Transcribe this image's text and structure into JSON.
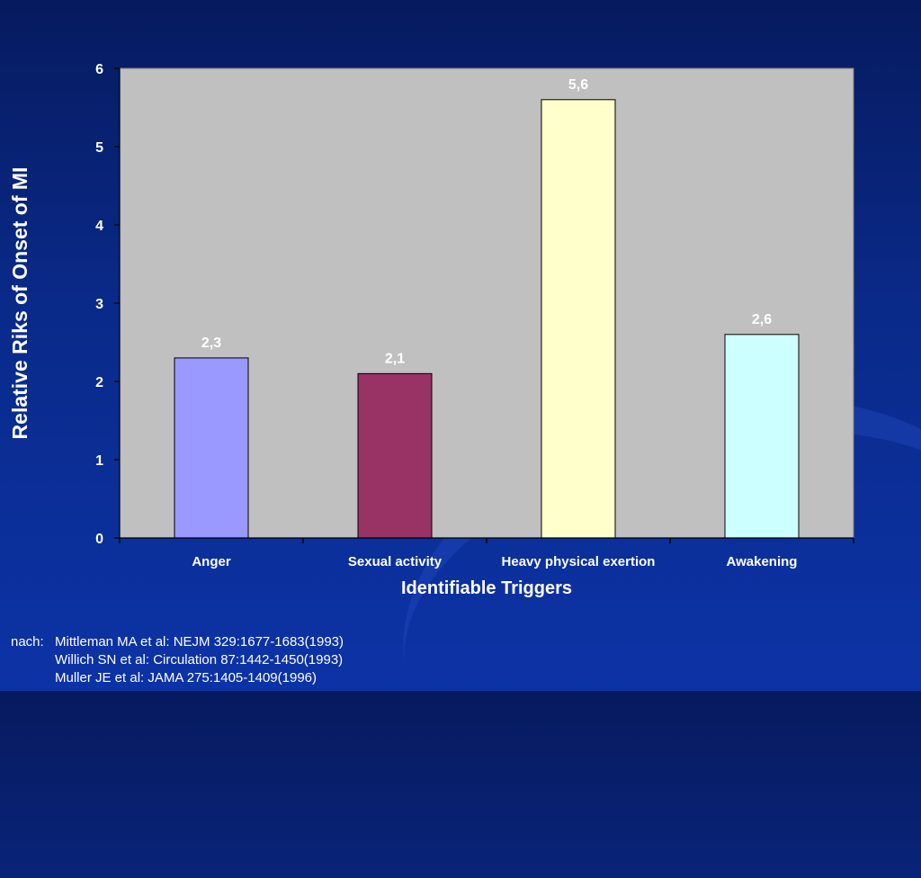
{
  "chart_data": {
    "type": "bar",
    "categories": [
      "Anger",
      "Sexual activity",
      "Heavy physical exertion",
      "Awakening"
    ],
    "values": [
      2.3,
      2.1,
      5.6,
      2.6
    ],
    "value_labels": [
      "2,3",
      "2,1",
      "5,6",
      "2,6"
    ],
    "bar_colors": [
      "#9999ff",
      "#993366",
      "#ffffcc",
      "#ccffff"
    ],
    "xlabel": "Identifiable Triggers",
    "ylabel": "Relative Riks of Onset of MI",
    "ylim": [
      0,
      6
    ],
    "yticks": [
      "0",
      "1",
      "2",
      "3",
      "4",
      "5",
      "6"
    ],
    "grid": false,
    "plot_background": "#c0c0c0"
  },
  "citation": {
    "prefix": "nach:",
    "lines": [
      "Mittleman MA et al: NEJM 329:1677-1683(1993)",
      "Willich SN et al: Circulation 87:1442-1450(1993)",
      "Muller JE et al: JAMA 275:1405-1409(1996)"
    ]
  }
}
